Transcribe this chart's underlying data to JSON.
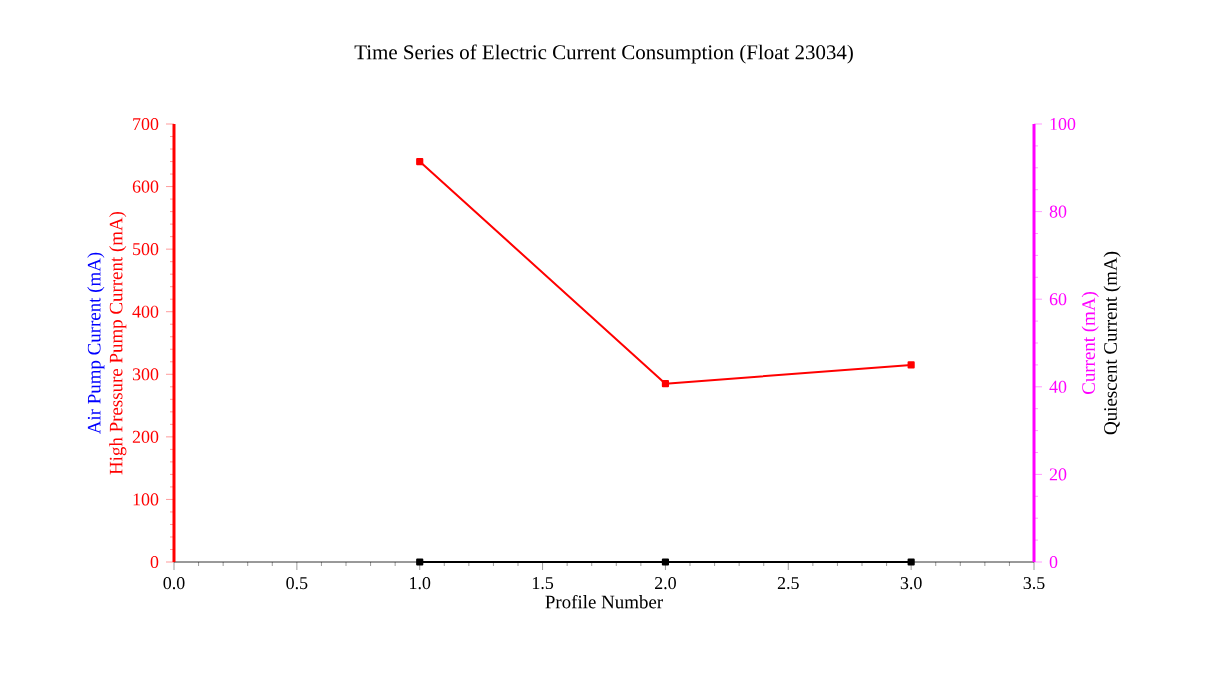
{
  "chart_data": {
    "type": "line",
    "title": "Time Series of Electric Current Consumption (Float 23034)",
    "xlabel": "Profile Number",
    "x": [
      1,
      2,
      3
    ],
    "xlim": [
      0,
      3.5
    ],
    "xticks": [
      {
        "value": 0,
        "label": "0.0"
      },
      0.5,
      {
        "value": 1,
        "label": "1.0"
      },
      1.5,
      {
        "value": 2,
        "label": "2.0"
      },
      2.5,
      {
        "value": 3,
        "label": "3.0"
      },
      3.5
    ],
    "ylim": [
      0,
      700
    ],
    "yticks": [
      0,
      100,
      200,
      300,
      400,
      500,
      600,
      700
    ],
    "y2lim": [
      0,
      100
    ],
    "y2ticks": [
      0,
      20,
      40,
      60,
      80,
      100
    ],
    "marker": "square",
    "line_style": "solid",
    "grid": false,
    "series": [
      {
        "name": "Air Pump Current (mA)",
        "color": "#0000ff",
        "axis": "y",
        "values": [
          null,
          null,
          null
        ]
      },
      {
        "name": "High Pressure Pump Current (mA)",
        "color": "#ff0000",
        "axis": "y",
        "values": [
          640,
          285,
          315
        ]
      },
      {
        "name": "Current (mA)",
        "color": "#ff00ff",
        "axis": "y2",
        "values": [
          null,
          null,
          null
        ]
      },
      {
        "name": "Quiescent Current (mA)",
        "color": "#000000",
        "axis": "y2",
        "values": [
          0,
          0,
          0
        ]
      }
    ]
  }
}
